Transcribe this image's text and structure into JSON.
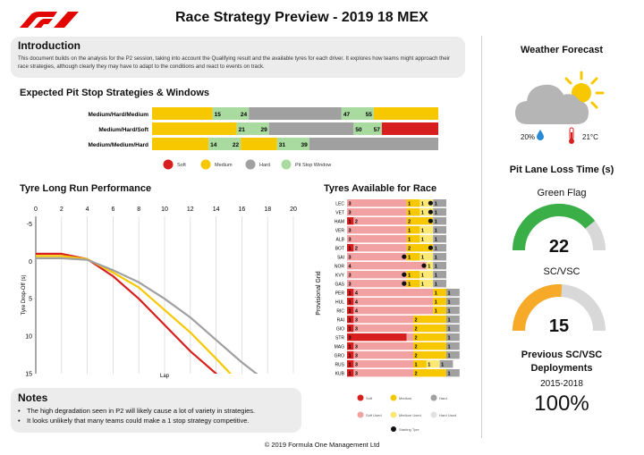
{
  "header": {
    "title": "Race Strategy Preview - 2019 18 MEX",
    "logo_text": "F1"
  },
  "intro": {
    "title": "Introduction",
    "text": "This document builds on the analysis for the P2 session, taking into account the Qualifying result and the available tyres for each driver. It explores how teams might approach their race strategies, although clearly they may have to adapt to the conditions and react to events on track."
  },
  "colors": {
    "soft": "#d71f1f",
    "medium": "#f7c800",
    "hard": "#a0a0a0",
    "window": "#a9dba0",
    "soft_used": "#f1a1a1",
    "medium_used": "#fbe875",
    "hard_used": "#e2e2e2",
    "green": "#3aae47",
    "orange": "#f7a928",
    "grey": "#d8d8d8"
  },
  "pit_strategies": {
    "title": "Expected Pit Stop Strategies & Windows",
    "total_laps": 71,
    "rows": [
      {
        "label": "Medium/Hard/Medium",
        "segments": [
          {
            "compound": "medium",
            "from": 0,
            "to": 15
          },
          {
            "compound": "window",
            "from": 15,
            "to": 24,
            "label_from": "15",
            "label_to": "24"
          },
          {
            "compound": "hard",
            "from": 24,
            "to": 47
          },
          {
            "compound": "window",
            "from": 47,
            "to": 55,
            "label_from": "47",
            "label_to": "55"
          },
          {
            "compound": "medium",
            "from": 55,
            "to": 71
          }
        ]
      },
      {
        "label": "Medium/Hard/Soft",
        "segments": [
          {
            "compound": "medium",
            "from": 0,
            "to": 21
          },
          {
            "compound": "window",
            "from": 21,
            "to": 29,
            "label_from": "21",
            "label_to": "29"
          },
          {
            "compound": "hard",
            "from": 29,
            "to": 50
          },
          {
            "compound": "window",
            "from": 50,
            "to": 57,
            "label_from": "50",
            "label_to": "57"
          },
          {
            "compound": "soft",
            "from": 57,
            "to": 71
          }
        ]
      },
      {
        "label": "Medium/Medium/Hard",
        "segments": [
          {
            "compound": "medium",
            "from": 0,
            "to": 14
          },
          {
            "compound": "window",
            "from": 14,
            "to": 22,
            "label_from": "14",
            "label_to": "22"
          },
          {
            "compound": "medium",
            "from": 22,
            "to": 31
          },
          {
            "compound": "window",
            "from": 31,
            "to": 39,
            "label_from": "31",
            "label_to": "39"
          },
          {
            "compound": "hard",
            "from": 39,
            "to": 71
          }
        ]
      }
    ],
    "legend": [
      {
        "key": "soft",
        "label": "Soft"
      },
      {
        "key": "medium",
        "label": "Medium"
      },
      {
        "key": "hard",
        "label": "Hard"
      },
      {
        "key": "window",
        "label": "Pit Stop Window"
      }
    ]
  },
  "chart_data": {
    "type": "line",
    "title": "Tyre Long Run Performance",
    "xlabel": "Lap",
    "ylabel": "Tyre Drop-Off (s)",
    "xlim": [
      0,
      20
    ],
    "ylim": [
      -6,
      15
    ],
    "y_inverted": true,
    "x_ticks": [
      0,
      2,
      4,
      6,
      8,
      10,
      12,
      14,
      16,
      18,
      20
    ],
    "y_ticks": [
      -5,
      0,
      5,
      10,
      15
    ],
    "grid": "vertical",
    "series": [
      {
        "compound": "soft",
        "x": [
          0,
          2,
          4,
          6,
          8,
          10,
          12,
          13,
          14,
          14.5
        ],
        "y": [
          -1,
          -1,
          -0.3,
          2,
          5,
          8.5,
          12,
          13.5,
          15,
          16
        ]
      },
      {
        "compound": "medium",
        "x": [
          0,
          2,
          4,
          6,
          8,
          10,
          12,
          14,
          15,
          15.5
        ],
        "y": [
          -0.7,
          -0.7,
          -0.3,
          1.5,
          3.5,
          6.5,
          9.5,
          13,
          14.8,
          16
        ]
      },
      {
        "compound": "hard",
        "x": [
          0,
          2,
          4,
          6,
          8,
          10,
          12,
          14,
          16,
          17.5
        ],
        "y": [
          -0.4,
          -0.4,
          -0.2,
          1.2,
          2.8,
          5,
          7.5,
          10.5,
          13.5,
          15.5
        ]
      }
    ]
  },
  "tyres": {
    "title": "Tyres Available for Race",
    "ylabel": "Provisional Grid",
    "drivers": [
      {
        "name": "LEC",
        "cells": [
          {
            "c": "soft_used",
            "v": "3",
            "w": 9
          },
          {
            "c": "medium",
            "v": "1",
            "w": 2
          },
          {
            "c": "medium_used",
            "v": "1",
            "w": 2
          },
          {
            "c": "hard",
            "v": "1",
            "w": 2,
            "dot": true
          }
        ]
      },
      {
        "name": "VET",
        "cells": [
          {
            "c": "soft_used",
            "v": "3",
            "w": 9
          },
          {
            "c": "medium",
            "v": "1",
            "w": 2
          },
          {
            "c": "medium_used",
            "v": "1",
            "w": 2
          },
          {
            "c": "hard",
            "v": "1",
            "w": 2,
            "dot": true
          }
        ]
      },
      {
        "name": "HAM",
        "cells": [
          {
            "c": "soft",
            "v": "1",
            "w": 1
          },
          {
            "c": "soft_used",
            "v": "2",
            "w": 8
          },
          {
            "c": "medium",
            "v": "2",
            "w": 4
          },
          {
            "c": "hard",
            "v": "1",
            "w": 2,
            "dot": true
          }
        ]
      },
      {
        "name": "VER",
        "cells": [
          {
            "c": "soft_used",
            "v": "3",
            "w": 9
          },
          {
            "c": "medium",
            "v": "1",
            "w": 2
          },
          {
            "c": "medium_used",
            "v": "1",
            "w": 2
          },
          {
            "c": "hard",
            "v": "1",
            "w": 2
          }
        ]
      },
      {
        "name": "ALB",
        "cells": [
          {
            "c": "soft_used",
            "v": "3",
            "w": 9
          },
          {
            "c": "medium",
            "v": "1",
            "w": 2
          },
          {
            "c": "medium_used",
            "v": "1",
            "w": 2
          },
          {
            "c": "hard",
            "v": "1",
            "w": 2
          }
        ]
      },
      {
        "name": "BOT",
        "cells": [
          {
            "c": "soft",
            "v": "1",
            "w": 1
          },
          {
            "c": "soft_used",
            "v": "2",
            "w": 8
          },
          {
            "c": "medium",
            "v": "2",
            "w": 4
          },
          {
            "c": "hard",
            "v": "1",
            "w": 2,
            "dot": true
          }
        ]
      },
      {
        "name": "SAI",
        "cells": [
          {
            "c": "soft_used",
            "v": "3",
            "w": 9
          },
          {
            "c": "medium",
            "v": "1",
            "w": 2,
            "dot": true
          },
          {
            "c": "medium_used",
            "v": "1",
            "w": 2
          },
          {
            "c": "hard",
            "v": "1",
            "w": 2
          }
        ]
      },
      {
        "name": "NOR",
        "cells": [
          {
            "c": "soft_used",
            "v": "4",
            "w": 12
          },
          {
            "c": "medium_used",
            "v": "1",
            "w": 1,
            "dot": true
          },
          {
            "c": "hard",
            "v": "1",
            "w": 2
          }
        ]
      },
      {
        "name": "KVY",
        "cells": [
          {
            "c": "soft_used",
            "v": "3",
            "w": 9
          },
          {
            "c": "medium",
            "v": "1",
            "w": 2,
            "dot": true
          },
          {
            "c": "medium_used",
            "v": "1",
            "w": 2
          },
          {
            "c": "hard",
            "v": "1",
            "w": 2
          }
        ]
      },
      {
        "name": "GAS",
        "cells": [
          {
            "c": "soft_used",
            "v": "3",
            "w": 9
          },
          {
            "c": "medium",
            "v": "1",
            "w": 2,
            "dot": true
          },
          {
            "c": "medium_used",
            "v": "1",
            "w": 2
          },
          {
            "c": "hard",
            "v": "1",
            "w": 2
          }
        ]
      },
      {
        "name": "PER",
        "cells": [
          {
            "c": "soft",
            "v": "1",
            "w": 1
          },
          {
            "c": "soft_used",
            "v": "4",
            "w": 12
          },
          {
            "c": "medium",
            "v": "1",
            "w": 2
          },
          {
            "c": "hard",
            "v": "1",
            "w": 2
          }
        ]
      },
      {
        "name": "HUL",
        "cells": [
          {
            "c": "soft",
            "v": "1",
            "w": 1
          },
          {
            "c": "soft_used",
            "v": "4",
            "w": 12
          },
          {
            "c": "medium",
            "v": "1",
            "w": 2
          },
          {
            "c": "hard",
            "v": "1",
            "w": 2
          }
        ]
      },
      {
        "name": "RIC",
        "cells": [
          {
            "c": "soft",
            "v": "1",
            "w": 1
          },
          {
            "c": "soft_used",
            "v": "4",
            "w": 12
          },
          {
            "c": "medium",
            "v": "1",
            "w": 2
          },
          {
            "c": "hard",
            "v": "1",
            "w": 2
          }
        ]
      },
      {
        "name": "RAI",
        "cells": [
          {
            "c": "soft",
            "v": "1",
            "w": 1
          },
          {
            "c": "soft_used",
            "v": "3",
            "w": 9
          },
          {
            "c": "medium",
            "v": "2",
            "w": 5
          },
          {
            "c": "hard",
            "v": "1",
            "w": 2
          }
        ]
      },
      {
        "name": "GIO",
        "cells": [
          {
            "c": "soft",
            "v": "1",
            "w": 1
          },
          {
            "c": "soft_used",
            "v": "3",
            "w": 9
          },
          {
            "c": "medium",
            "v": "2",
            "w": 5
          },
          {
            "c": "hard",
            "v": "1",
            "w": 2
          }
        ]
      },
      {
        "name": "STR",
        "cells": [
          {
            "c": "soft",
            "v": "3",
            "w": 9
          },
          {
            "c": "soft_used",
            "v": "",
            "w": 1
          },
          {
            "c": "medium",
            "v": "2",
            "w": 5
          },
          {
            "c": "hard",
            "v": "1",
            "w": 2
          }
        ]
      },
      {
        "name": "MAG",
        "cells": [
          {
            "c": "soft",
            "v": "1",
            "w": 1
          },
          {
            "c": "soft_used",
            "v": "3",
            "w": 9
          },
          {
            "c": "medium",
            "v": "2",
            "w": 5
          },
          {
            "c": "hard",
            "v": "1",
            "w": 2
          }
        ]
      },
      {
        "name": "GRO",
        "cells": [
          {
            "c": "soft",
            "v": "1",
            "w": 1
          },
          {
            "c": "soft_used",
            "v": "3",
            "w": 9
          },
          {
            "c": "medium",
            "v": "2",
            "w": 5
          },
          {
            "c": "hard",
            "v": "1",
            "w": 2
          }
        ]
      },
      {
        "name": "RUS",
        "cells": [
          {
            "c": "soft",
            "v": "1",
            "w": 1
          },
          {
            "c": "soft_used",
            "v": "3",
            "w": 9
          },
          {
            "c": "medium",
            "v": "1",
            "w": 2
          },
          {
            "c": "medium_used",
            "v": "1",
            "w": 2
          },
          {
            "c": "hard",
            "v": "1",
            "w": 2
          }
        ]
      },
      {
        "name": "KUB",
        "cells": [
          {
            "c": "soft",
            "v": "1",
            "w": 1
          },
          {
            "c": "soft_used",
            "v": "3",
            "w": 9
          },
          {
            "c": "medium",
            "v": "2",
            "w": 5
          },
          {
            "c": "hard",
            "v": "1",
            "w": 2
          }
        ]
      }
    ],
    "legend_new": [
      {
        "key": "soft",
        "label": "Soft"
      },
      {
        "key": "medium",
        "label": "Medium"
      },
      {
        "key": "hard",
        "label": "Hard"
      }
    ],
    "legend_used": [
      {
        "key": "soft_used",
        "label": "Soft Used"
      },
      {
        "key": "medium_used",
        "label": "Medium Used"
      },
      {
        "key": "hard_used",
        "label": "Hard Used"
      }
    ],
    "legend_dot_label": "Starting Tyre"
  },
  "notes": {
    "title": "Notes",
    "items": [
      "The high degradation seen in P2 will likely cause a lot of variety in strategies.",
      "It looks unlikely that many teams could make a 1 stop strategy competitive."
    ]
  },
  "weather": {
    "title": "Weather Forecast",
    "rain_chance": "20%",
    "temperature": "21°C"
  },
  "pitlane": {
    "title": "Pit Lane Loss Time (s)",
    "green_flag_label": "Green Flag",
    "green_flag_value": "22",
    "green_flag_fill": 0.78,
    "sc_label": "SC/VSC",
    "sc_value": "15",
    "sc_fill": 0.52
  },
  "deployments": {
    "title": "Previous SC/VSC Deployments",
    "range": "2015-2018",
    "value": "100%"
  },
  "footer": {
    "text": "© 2019 Formula One Management Ltd"
  }
}
